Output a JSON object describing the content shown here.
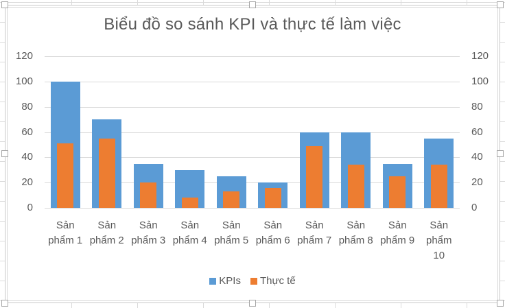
{
  "chart_data": {
    "type": "bar",
    "title": "Biểu đồ so sánh KPI và thực tế làm việc",
    "categories": [
      "Sản phẩm 1",
      "Sản phẩm 2",
      "Sản phẩm 3",
      "Sản phẩm 4",
      "Sản phẩm 5",
      "Sản phẩm 6",
      "Sản phẩm 7",
      "Sản phẩm 8",
      "Sản phẩm 9",
      "Sản phẩm 10"
    ],
    "series": [
      {
        "name": "KPIs",
        "color": "#5B9BD5",
        "axis": "primary",
        "values": [
          100,
          70,
          35,
          30,
          25,
          20,
          60,
          60,
          35,
          55
        ]
      },
      {
        "name": "Thực tế",
        "color": "#ED7D31",
        "axis": "secondary",
        "values": [
          51,
          55,
          20,
          8,
          13,
          16,
          49,
          34,
          25,
          34
        ]
      }
    ],
    "xlabel": "",
    "ylabel": "",
    "ylim": [
      0,
      120
    ],
    "y2lim": [
      0,
      120
    ],
    "yticks": [
      "0",
      "20",
      "40",
      "60",
      "80",
      "100",
      "120"
    ],
    "grid": true,
    "legend_position": "bottom",
    "overlap": "secondary series drawn narrower on top of primary"
  },
  "legend": [
    {
      "label": "KPIs",
      "color": "#5B9BD5"
    },
    {
      "label": "Thực tế",
      "color": "#ED7D31"
    }
  ],
  "x_labels": [
    [
      "Sản",
      "phẩm 1"
    ],
    [
      "Sản",
      "phẩm 2"
    ],
    [
      "Sản",
      "phẩm 3"
    ],
    [
      "Sản",
      "phẩm 4"
    ],
    [
      "Sản",
      "phẩm 5"
    ],
    [
      "Sản",
      "phẩm 6"
    ],
    [
      "Sản",
      "phẩm 7"
    ],
    [
      "Sản",
      "phẩm 8"
    ],
    [
      "Sản",
      "phẩm 9"
    ],
    [
      "Sản",
      "phẩm",
      "10"
    ]
  ]
}
